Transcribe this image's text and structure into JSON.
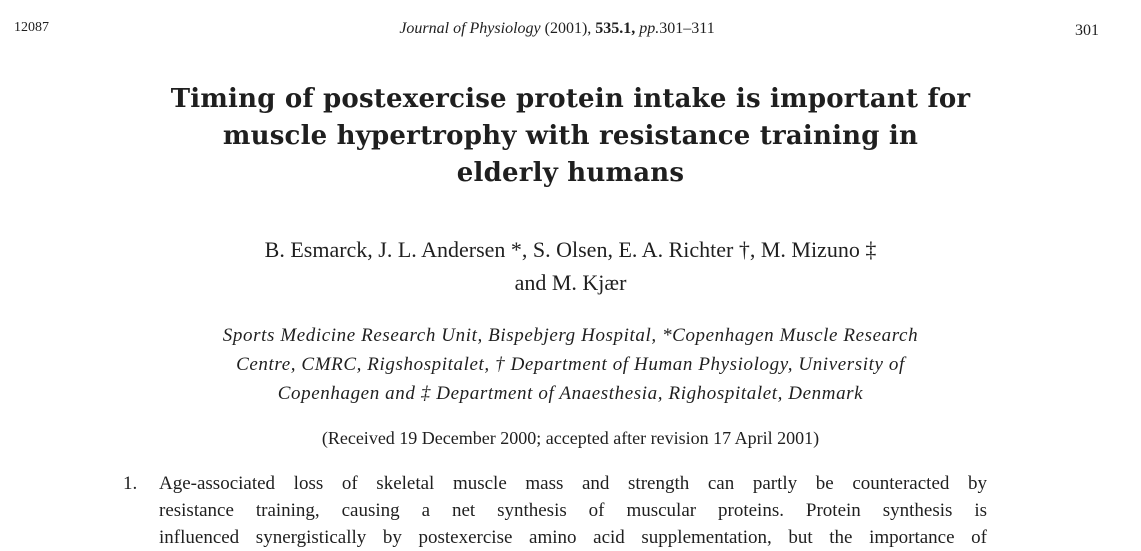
{
  "header": {
    "manuscript_id": "12087",
    "journal": "Journal of Physiology",
    "year": "(2001),",
    "volume": "535.1,",
    "pages_prefix": "pp.",
    "pages": "301–311",
    "page_number": "301"
  },
  "title": {
    "lines": [
      "Timing of postexercise protein intake is important for",
      "muscle hypertrophy with resistance training in",
      "elderly humans"
    ]
  },
  "authors": {
    "lines": [
      "B. Esmarck, J. L. Andersen *, S. Olsen, E. A. Richter †, M. Mizuno ‡",
      "and M. Kjær"
    ]
  },
  "affiliation": {
    "lines": [
      "Sports Medicine Research Unit, Bispebjerg Hospital, *Copenhagen Muscle Research",
      "Centre, CMRC, Rigshospitalet, † Department of Human Physiology, University of",
      "Copenhagen and ‡ Department of Anaesthesia, Righospitalet, Denmark"
    ]
  },
  "received": "(Received 19 December 2000; accepted after revision 17 April 2001)",
  "abstract": {
    "item_number": "1.",
    "lines": [
      "Age-associated loss of skeletal muscle mass and strength can partly be counteracted by",
      "resistance training, causing a net synthesis of muscular proteins. Protein synthesis is",
      "influenced synergistically by postexercise amino acid supplementation, but the importance of"
    ]
  }
}
